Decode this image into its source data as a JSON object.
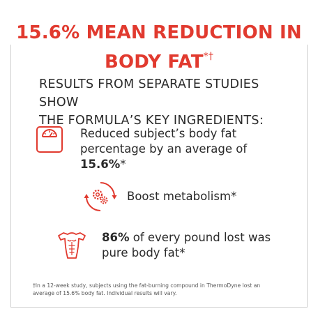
{
  "headline": {
    "line1": "15.6% MEAN REDUCTION IN",
    "line2": "BODY FAT",
    "line2_mark": "*†"
  },
  "subheading": {
    "line1": "RESULTS FROM SEPARATE STUDIES SHOW",
    "line2": "THE FORMULA’S KEY INGREDIENTS:"
  },
  "benefits": [
    {
      "icon": "scale-icon",
      "line1": "Reduced subject’s body fat",
      "line2_pre": "percentage by an average of ",
      "line2_bold": "15.6%",
      "line2_post": "*"
    },
    {
      "icon": "metabolism-gears-icon",
      "text": "Boost metabolism*"
    },
    {
      "icon": "torso-icon",
      "line1_bold": "86%",
      "line1_rest": " of every pound lost was",
      "line2": "pure body fat*"
    }
  ],
  "footnote": {
    "line1": "†In a 12-week study, subjects using the fat-burning compound in ThermoDyne lost an",
    "line2": "average of 15.6% body fat. Individual results will vary."
  },
  "colors": {
    "accent": "#e13a2f",
    "text": "#222222",
    "border": "#cfcfcf"
  }
}
